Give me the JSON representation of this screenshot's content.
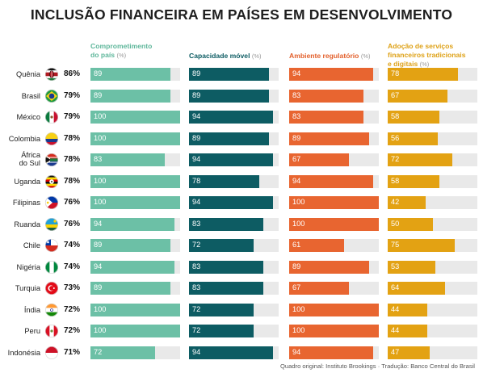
{
  "title": "INCLUSÃO FINANCEIRA EM PAÍSES EM DESENVOLVIMENTO",
  "footer": "Quadro original: Instituto Brookings · Tradução: Banco Central do Brasil",
  "columns": [
    {
      "label_lines": [
        "Comprometimento",
        "do país"
      ],
      "unit": "(%)",
      "color": "#6cc0a6"
    },
    {
      "label_lines": [
        "Capacidade móvel"
      ],
      "unit": "(%)",
      "color": "#0d5c63"
    },
    {
      "label_lines": [
        "Ambiente regulatório"
      ],
      "unit": "(%)",
      "color": "#e86530"
    },
    {
      "label_lines": [
        "Adoção de serviços",
        "financeiros tradicionais",
        "e digitais"
      ],
      "unit": "(%)",
      "color": "#e3a213"
    }
  ],
  "chart_data": {
    "type": "bar",
    "title": "INCLUSÃO FINANCEIRA EM PAÍSES EM DESENVOLVIMENTO",
    "xlim": [
      0,
      100
    ],
    "categories": [
      "Quênia",
      "Brasil",
      "México",
      "Colombia",
      "África do Sul",
      "Uganda",
      "Filipinas",
      "Ruanda",
      "Chile",
      "Nigéria",
      "Turquia",
      "Índia",
      "Peru",
      "Indonésia"
    ],
    "overall_scores": [
      "86%",
      "79%",
      "79%",
      "78%",
      "78%",
      "78%",
      "76%",
      "76%",
      "74%",
      "74%",
      "73%",
      "72%",
      "72%",
      "71%"
    ],
    "series": [
      {
        "name": "Comprometimento do país",
        "values": [
          89,
          89,
          100,
          100,
          83,
          100,
          100,
          94,
          89,
          94,
          89,
          100,
          100,
          72
        ]
      },
      {
        "name": "Capacidade móvel",
        "values": [
          89,
          89,
          94,
          89,
          94,
          78,
          94,
          83,
          72,
          83,
          83,
          72,
          72,
          94
        ]
      },
      {
        "name": "Ambiente regulatório",
        "values": [
          94,
          83,
          83,
          89,
          67,
          94,
          100,
          100,
          61,
          89,
          67,
          100,
          100,
          94
        ]
      },
      {
        "name": "Adoção de serviços financeiros tradicionais e digitais",
        "values": [
          78,
          67,
          58,
          56,
          72,
          58,
          42,
          50,
          75,
          53,
          64,
          44,
          44,
          47
        ]
      }
    ]
  },
  "flags": [
    "kenya-flag-icon",
    "brazil-flag-icon",
    "mexico-flag-icon",
    "colombia-flag-icon",
    "south-africa-flag-icon",
    "uganda-flag-icon",
    "philippines-flag-icon",
    "rwanda-flag-icon",
    "chile-flag-icon",
    "nigeria-flag-icon",
    "turkey-flag-icon",
    "india-flag-icon",
    "peru-flag-icon",
    "indonesia-flag-icon"
  ]
}
